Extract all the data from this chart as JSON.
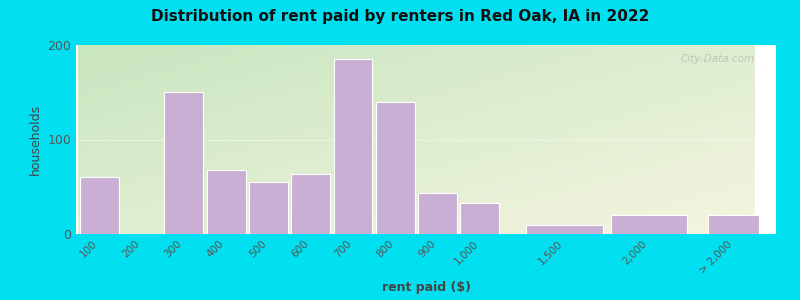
{
  "title": "Distribution of rent paid by renters in Red Oak, IA in 2022",
  "xlabel": "rent paid ($)",
  "ylabel": "households",
  "bar_color": "#c9afd4",
  "bar_edge_color": "#ffffff",
  "background_outer": "#00e0f0",
  "ylim": [
    0,
    200
  ],
  "yticks": [
    0,
    100,
    200
  ],
  "bars_main": [
    {
      "label": "100",
      "value": 60
    },
    {
      "label": "200",
      "value": 0
    },
    {
      "label": "300",
      "value": 150
    },
    {
      "label": "400",
      "value": 68
    },
    {
      "label": "500",
      "value": 55
    },
    {
      "label": "600",
      "value": 63
    },
    {
      "label": "700",
      "value": 185
    },
    {
      "label": "800",
      "value": 140
    },
    {
      "label": "900",
      "value": 43
    },
    {
      "label": "1,000",
      "value": 33
    }
  ],
  "bars_right": [
    {
      "label": "1,500",
      "value": 10
    },
    {
      "label": "2,000",
      "value": 20
    },
    {
      "label": "> 2,000",
      "value": 20
    }
  ],
  "watermark": "City-Data.com",
  "grad_left_top": "#c8e6c0",
  "grad_right_bottom": "#f5f5e0"
}
